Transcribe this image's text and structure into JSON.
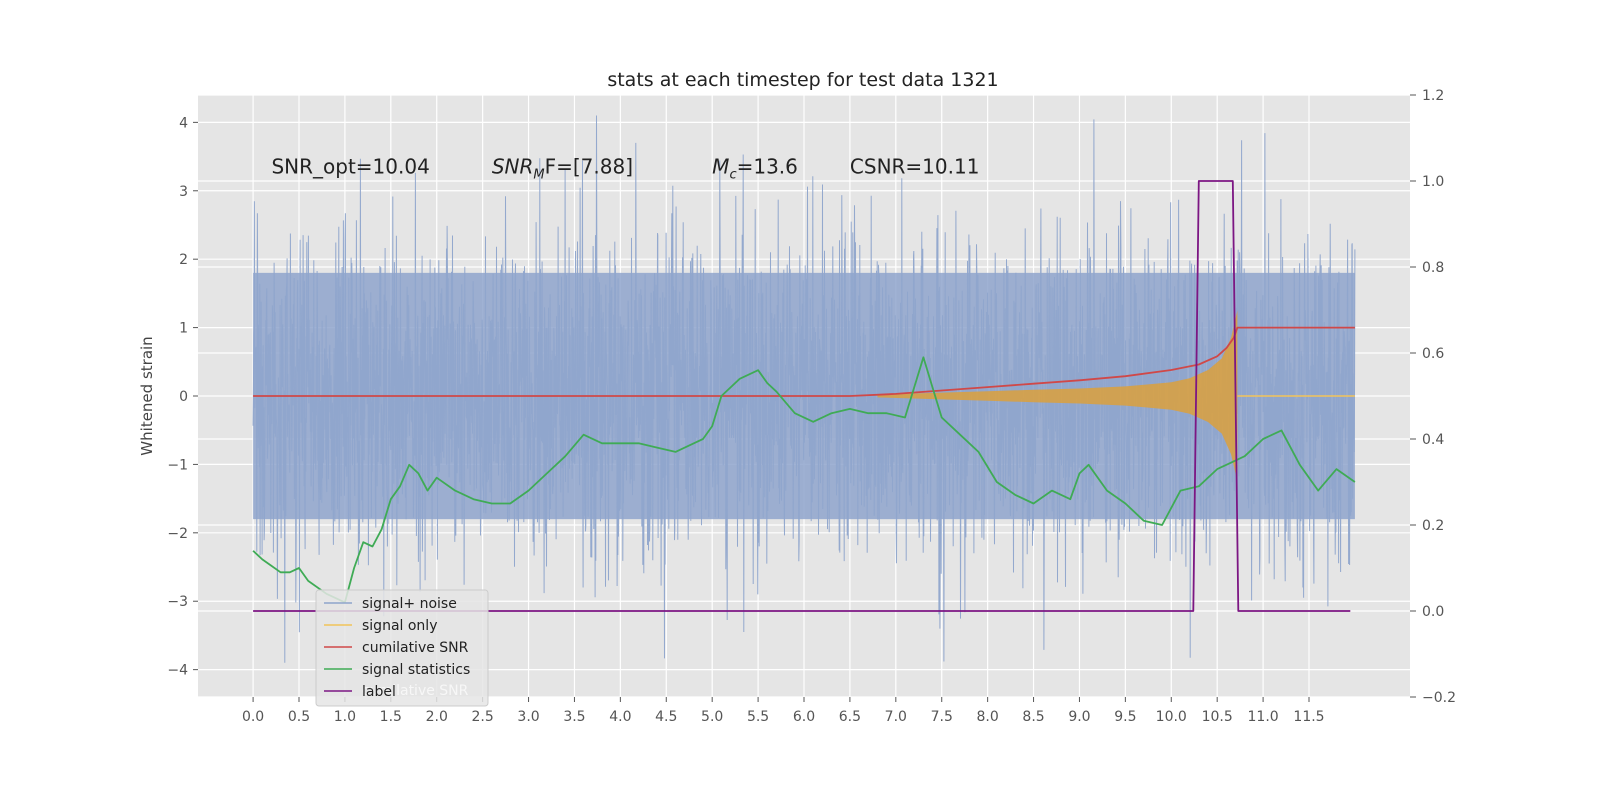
{
  "chart_data": {
    "type": "line",
    "title": "stats at each timestep for test data 1321",
    "xlabel": "",
    "ylabel": "Whitened strain",
    "xlim": [
      -0.6,
      12.6
    ],
    "ylim": [
      -4.4,
      4.4
    ],
    "y2lim": [
      -0.2,
      1.2
    ],
    "grid": true,
    "x_ticks": [
      0.0,
      0.5,
      1.0,
      1.5,
      2.0,
      2.5,
      3.0,
      3.5,
      4.0,
      4.5,
      5.0,
      5.5,
      6.0,
      6.5,
      7.0,
      7.5,
      8.0,
      8.5,
      9.0,
      9.5,
      10.0,
      10.5,
      11.0,
      11.5
    ],
    "x_tick_labels": [
      "0.0",
      "0.5",
      "1.0",
      "1.5",
      "2.0",
      "2.5",
      "3.0",
      "3.5",
      "4.0",
      "4.5",
      "5.0",
      "5.5",
      "6.0",
      "6.5",
      "7.0",
      "7.5",
      "8.0",
      "8.5",
      "9.0",
      "9.5",
      "10.0",
      "10.5",
      "11.0",
      "11.5"
    ],
    "y_ticks": [
      4,
      3,
      2,
      1,
      0,
      -1,
      -2,
      -3,
      -4
    ],
    "y_tick_labels": [
      "4",
      "3",
      "2",
      "1",
      "0",
      "−1",
      "−2",
      "−3",
      "−4"
    ],
    "y2_ticks": [
      1.2,
      1.0,
      0.8,
      0.6,
      0.4,
      0.2,
      0.0,
      -0.2
    ],
    "y2_tick_labels": [
      "1.2",
      "1.0",
      "0.8",
      "0.6",
      "0.4",
      "0.2",
      "0.0",
      "−0.2"
    ],
    "annotations": [
      {
        "x": 0.2,
        "y": 3.25,
        "text": "SNR_opt=10.04",
        "italic": false
      },
      {
        "x": 2.6,
        "y": 3.25,
        "text": "SNR",
        "sub": "M",
        "suffix": "F=[7.88]",
        "italic": true
      },
      {
        "x": 5.0,
        "y": 3.25,
        "text": "M",
        "sub": "c",
        "suffix": "=13.6",
        "italic": true
      },
      {
        "x": 6.5,
        "y": 3.25,
        "text": "CSNR=10.11",
        "italic": false
      }
    ],
    "legend": {
      "location": "lower-left",
      "entries": [
        {
          "label": "signal+ noise",
          "color": "#8fa5cc"
        },
        {
          "label": "signal only",
          "color": "#f2c45a"
        },
        {
          "label": "cumilative SNR",
          "color": "#d04848"
        },
        {
          "label": "signal statistics",
          "color": "#3fab55"
        },
        {
          "label": "label",
          "color": "#7c1683"
        }
      ],
      "ghost_text": "cumilative SNR"
    },
    "series": [
      {
        "name": "signal+ noise",
        "color": "#8fa5cc",
        "axis": "left",
        "kind": "noise",
        "x_range": [
          0.0,
          12.0
        ],
        "sigma": 1.15,
        "typical_max": 2.5,
        "extreme_max": 4.1,
        "extreme_min": -3.9
      },
      {
        "name": "signal only",
        "color": "#dca03c",
        "axis": "left",
        "kind": "envelope",
        "x": [
          6.8,
          7.5,
          8.0,
          8.5,
          9.0,
          9.5,
          10.0,
          10.2,
          10.4,
          10.55,
          10.65,
          10.72
        ],
        "amplitude": [
          0.02,
          0.05,
          0.07,
          0.09,
          0.11,
          0.14,
          0.2,
          0.26,
          0.38,
          0.55,
          0.85,
          1.25
        ],
        "tail_x": [
          10.72,
          12.0
        ],
        "tail_y": 0.0
      },
      {
        "name": "cumilative SNR",
        "color": "#d04848",
        "axis": "left",
        "x": [
          0.0,
          6.5,
          7.0,
          7.5,
          8.0,
          8.5,
          9.0,
          9.5,
          10.0,
          10.3,
          10.5,
          10.6,
          10.68,
          10.72,
          12.0
        ],
        "values": [
          0.0,
          0.0,
          0.03,
          0.08,
          0.13,
          0.18,
          0.23,
          0.29,
          0.38,
          0.46,
          0.58,
          0.7,
          0.85,
          1.0,
          1.0
        ]
      },
      {
        "name": "signal statistics",
        "color": "#3fab55",
        "axis": "right",
        "x": [
          0.0,
          0.1,
          0.2,
          0.3,
          0.4,
          0.5,
          0.6,
          0.8,
          1.0,
          1.1,
          1.2,
          1.3,
          1.4,
          1.5,
          1.6,
          1.7,
          1.8,
          1.9,
          2.0,
          2.2,
          2.4,
          2.6,
          2.8,
          3.0,
          3.2,
          3.4,
          3.6,
          3.8,
          4.0,
          4.2,
          4.4,
          4.6,
          4.8,
          4.9,
          5.0,
          5.1,
          5.3,
          5.5,
          5.6,
          5.7,
          5.9,
          6.1,
          6.3,
          6.5,
          6.7,
          6.9,
          7.1,
          7.3,
          7.4,
          7.5,
          7.7,
          7.9,
          8.1,
          8.3,
          8.5,
          8.7,
          8.9,
          9.0,
          9.1,
          9.3,
          9.5,
          9.7,
          9.9,
          10.1,
          10.3,
          10.5,
          10.6,
          10.8,
          11.0,
          11.2,
          11.4,
          11.6,
          11.8,
          12.0
        ],
        "values": [
          0.14,
          0.12,
          0.105,
          0.09,
          0.09,
          0.1,
          0.07,
          0.04,
          0.02,
          0.1,
          0.16,
          0.15,
          0.19,
          0.26,
          0.29,
          0.34,
          0.32,
          0.28,
          0.31,
          0.28,
          0.26,
          0.25,
          0.25,
          0.28,
          0.32,
          0.36,
          0.41,
          0.39,
          0.39,
          0.39,
          0.38,
          0.37,
          0.39,
          0.4,
          0.43,
          0.5,
          0.54,
          0.56,
          0.53,
          0.51,
          0.46,
          0.44,
          0.46,
          0.47,
          0.46,
          0.46,
          0.45,
          0.59,
          0.52,
          0.45,
          0.41,
          0.37,
          0.3,
          0.27,
          0.25,
          0.28,
          0.26,
          0.32,
          0.34,
          0.28,
          0.25,
          0.21,
          0.2,
          0.28,
          0.29,
          0.33,
          0.34,
          0.36,
          0.4,
          0.42,
          0.34,
          0.28,
          0.33,
          0.3
        ]
      },
      {
        "name": "label",
        "color": "#7c1683",
        "axis": "right",
        "x": [
          0.0,
          10.24,
          10.3,
          10.67,
          10.73,
          11.95
        ],
        "values": [
          0.0,
          0.0,
          1.0,
          1.0,
          0.0,
          0.0
        ]
      }
    ]
  }
}
